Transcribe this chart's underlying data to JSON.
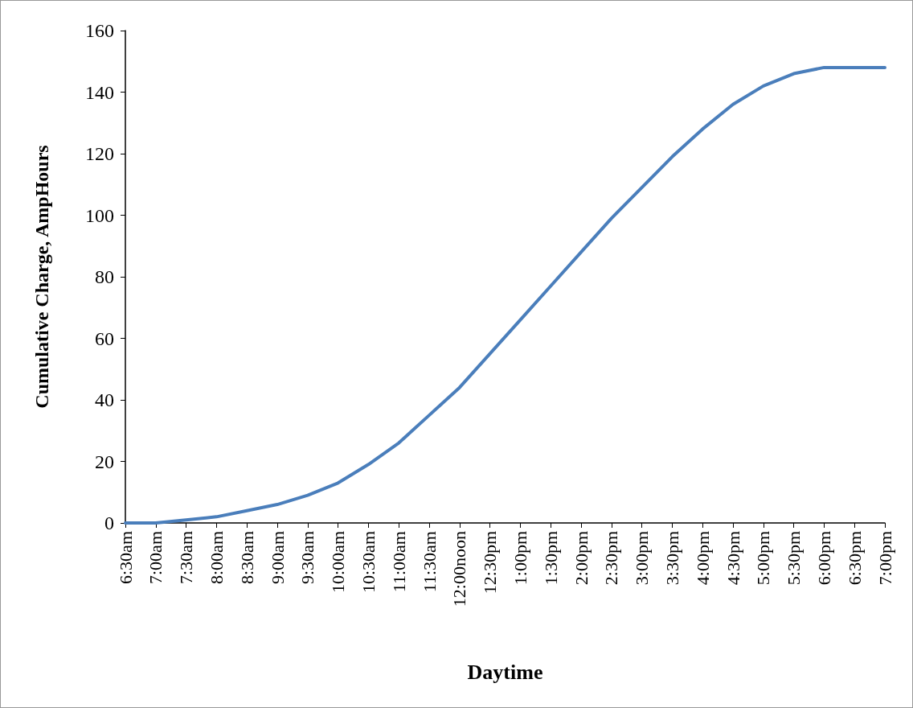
{
  "chart_data": {
    "type": "line",
    "xlabel": "Daytime",
    "ylabel": "Cumulative Charge, AmpHours",
    "categories": [
      "6:30am",
      "7:00am",
      "7:30am",
      "8:00am",
      "8:30am",
      "9:00am",
      "9:30am",
      "10:00am",
      "10:30am",
      "11:00am",
      "11:30am",
      "12:00noon",
      "12:30pm",
      "1:00pm",
      "1:30pm",
      "2:00pm",
      "2:30pm",
      "3:00pm",
      "3:30pm",
      "4:00pm",
      "4:30pm",
      "5:00pm",
      "5:30pm",
      "6:00pm",
      "6:30pm",
      "7:00pm"
    ],
    "series": [
      {
        "color": "#4a7ebb",
        "values": [
          0,
          0,
          1,
          2,
          4,
          6,
          9,
          13,
          19,
          26,
          35,
          44,
          55,
          66,
          77,
          88,
          99,
          109,
          119,
          128,
          136,
          142,
          146,
          148,
          148,
          148
        ]
      }
    ],
    "ylim": [
      0,
      160
    ],
    "yticks": [
      0,
      20,
      40,
      60,
      80,
      100,
      120,
      140,
      160
    ],
    "grid": false,
    "marker": "none",
    "line_style": "solid"
  }
}
